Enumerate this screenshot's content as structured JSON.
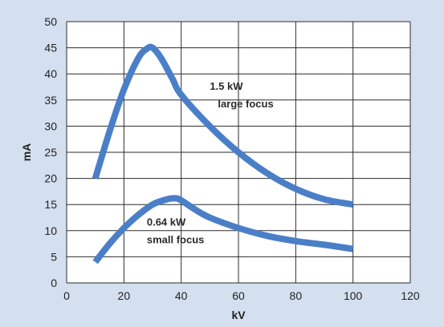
{
  "colors": {
    "background": "#d4dff0",
    "plot_background": "#ffffff",
    "line": "#4a7fc8",
    "grid": "#2b2b2b"
  },
  "chart_data": {
    "type": "line",
    "xlabel": "kV",
    "ylabel": "mA",
    "xlim": [
      0,
      120
    ],
    "ylim": [
      0,
      50
    ],
    "xticks": [
      0,
      20,
      40,
      60,
      80,
      100,
      120
    ],
    "yticks": [
      0,
      5,
      10,
      15,
      20,
      25,
      30,
      35,
      40,
      45,
      50
    ],
    "grid": true,
    "series": [
      {
        "x": [
          10,
          15,
          20,
          25,
          28,
          30,
          33,
          37,
          40,
          50,
          60,
          70,
          80,
          90,
          100
        ],
        "y": [
          20,
          29,
          37,
          43,
          44.8,
          45,
          43,
          39,
          36,
          30,
          25,
          21,
          18,
          16,
          15
        ]
      },
      {
        "x": [
          10,
          15,
          20,
          25,
          30,
          35,
          38,
          40,
          45,
          50,
          60,
          70,
          80,
          90,
          100
        ],
        "y": [
          4,
          7.5,
          10.5,
          13,
          15,
          16,
          16.2,
          15.8,
          14,
          12.5,
          10.5,
          9,
          8,
          7.3,
          6.5
        ]
      }
    ],
    "annotations": [
      {
        "lines": [
          "1.5 kW",
          "large focus"
        ],
        "x": 50,
        "y": 37
      },
      {
        "lines": [
          "0.64 kW",
          "small focus"
        ],
        "x": 28,
        "y": 11
      }
    ]
  }
}
